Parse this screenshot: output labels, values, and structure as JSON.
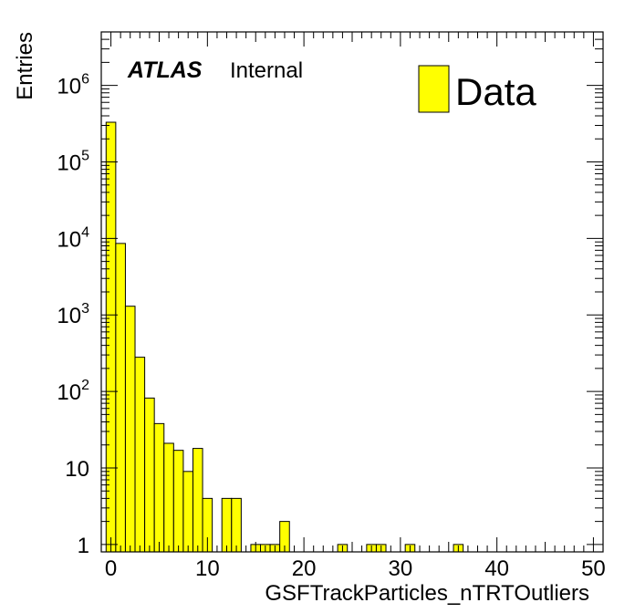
{
  "chart_data": {
    "type": "bar",
    "style": "histogram",
    "xlabel": "GSFTrackParticles_nTRTOutliers",
    "ylabel": "Entries",
    "log_y": true,
    "xlim": [
      -1,
      51
    ],
    "ylim": [
      0.8,
      5000000
    ],
    "bin_width": 1,
    "bin_centers": [
      0,
      1,
      2,
      3,
      4,
      5,
      6,
      7,
      8,
      9,
      10,
      11,
      12,
      13,
      14,
      15,
      16,
      17,
      18,
      19,
      20,
      21,
      22,
      23,
      24,
      25,
      26,
      27,
      28,
      29,
      30,
      31,
      32,
      33,
      34,
      35,
      36,
      37,
      38,
      39,
      40,
      41,
      42,
      43,
      44,
      45,
      46,
      47,
      48,
      49,
      50
    ],
    "values": [
      330000,
      8600,
      1300,
      280,
      82,
      38,
      21,
      17,
      9,
      18,
      4,
      0,
      4,
      4,
      0,
      1,
      1,
      1,
      2,
      0,
      0,
      0,
      0,
      0,
      1,
      0,
      0,
      1,
      1,
      0,
      0,
      1,
      0,
      0,
      0,
      0,
      1,
      0,
      0,
      0,
      0,
      0,
      0,
      0,
      0,
      0,
      0,
      0,
      0,
      0,
      0
    ],
    "x_ticks": [
      "0",
      "10",
      "20",
      "30",
      "40",
      "50"
    ],
    "y_ticks": [
      {
        "value": 1,
        "mantissa": "1",
        "exp": ""
      },
      {
        "value": 10,
        "mantissa": "10",
        "exp": ""
      },
      {
        "value": 100,
        "mantissa": "10",
        "exp": "2"
      },
      {
        "value": 1000,
        "mantissa": "10",
        "exp": "3"
      },
      {
        "value": 10000,
        "mantissa": "10",
        "exp": "4"
      },
      {
        "value": 100000,
        "mantissa": "10",
        "exp": "5"
      },
      {
        "value": 1000000,
        "mantissa": "10",
        "exp": "6"
      }
    ],
    "series": [
      {
        "name": "Data",
        "color": "#ffff00"
      }
    ],
    "legend_position": "top-right",
    "annotation": {
      "experiment": "ATLAS",
      "status": "Internal"
    }
  }
}
